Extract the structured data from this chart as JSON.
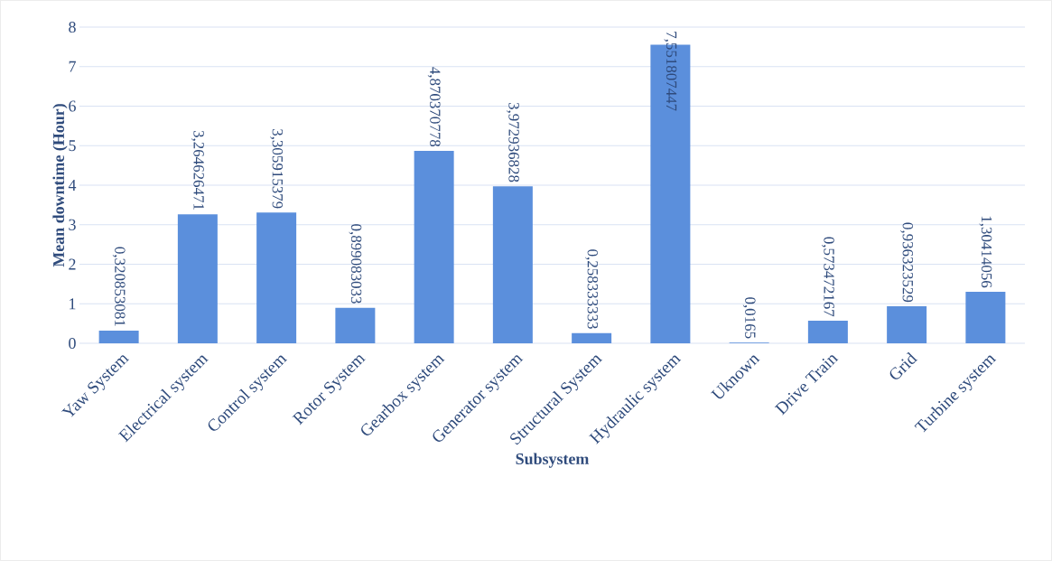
{
  "chart_data": {
    "type": "bar",
    "xlabel": "Subsystem",
    "ylabel": "Mean downtime (Hour)",
    "categories": [
      "Yaw System",
      "Electrical system",
      "Control system",
      "Rotor System",
      "Gearbox system",
      "Generator system",
      "Structural System",
      "Hydraulic system",
      "Uknown",
      "Drive Train",
      "Grid",
      "Turbine system"
    ],
    "values": [
      0.320853081,
      3.264626471,
      3.305915379,
      0.899083033,
      4.870370778,
      3.972936828,
      0.258333333,
      7.551807447,
      0.0165,
      0.573472167,
      0.936323529,
      1.30414056
    ],
    "value_labels": [
      "0,320853081",
      "3,264626471",
      "3,305915379",
      "0,899083033",
      "4,870370778",
      "3,972936828",
      "0,258333333",
      "7,551807447",
      "0,0165",
      "0,573472167",
      "0,936323529",
      "1,30414056"
    ],
    "color": "#5b8fdc",
    "ylim": [
      0,
      8
    ],
    "yticks": [
      0,
      1,
      2,
      3,
      4,
      5,
      6,
      7,
      8
    ],
    "grid": "y"
  }
}
